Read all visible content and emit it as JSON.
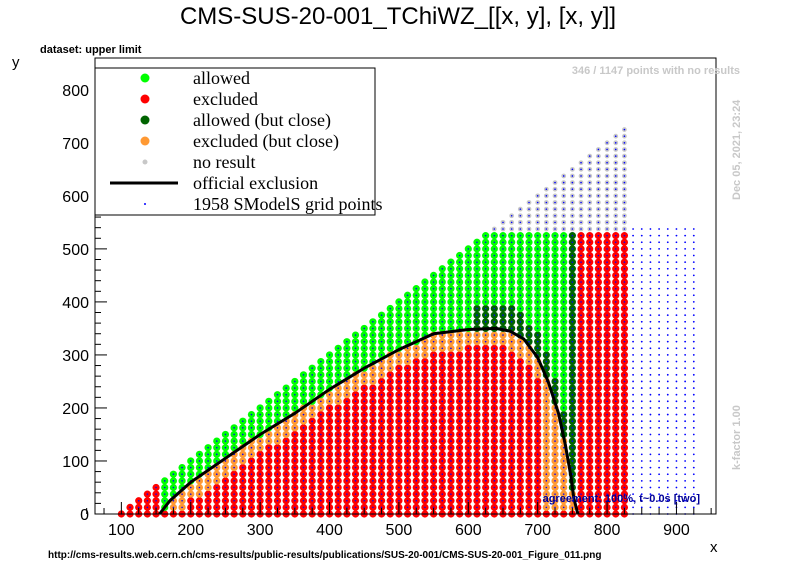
{
  "page": {
    "title": "CMS-SUS-20-001_TChiWZ_[[x, y], [x, y]]",
    "dataset_label": "dataset: upper limit",
    "no_result_note": "346 / 1147 points with no results",
    "date_note": "Dec 05, 2021, 23:24",
    "kfactor_note": "k-factor 1.00",
    "agreement_note": "agreement: 100%, t~0.0s [two]",
    "url": "http://cms-results.web.cern.ch/cms-results/public-results/publications/SUS-20-001/CMS-SUS-20-001_Figure_011.png"
  },
  "colors": {
    "allowed": "#00ff00",
    "excluded": "#ff0000",
    "allowed_close": "#006400",
    "excluded_close": "#ff9933",
    "no_result": "#c8c8c8",
    "official_exclusion": "#000000",
    "grid_points": "#0000ff",
    "agreement_text": "#000099"
  },
  "legend": [
    {
      "label": "allowed",
      "marker": "dot",
      "color_key": "allowed"
    },
    {
      "label": "excluded",
      "marker": "dot",
      "color_key": "excluded"
    },
    {
      "label": "allowed (but close)",
      "marker": "dot",
      "color_key": "allowed_close"
    },
    {
      "label": "excluded (but close)",
      "marker": "dot",
      "color_key": "excluded_close"
    },
    {
      "label": "no result",
      "marker": "small-dot",
      "color_key": "no_result"
    },
    {
      "label": "official exclusion",
      "marker": "line",
      "color_key": "official_exclusion"
    },
    {
      "label": "1958 SModelS grid points",
      "marker": "tiny-dot",
      "color_key": "grid_points"
    }
  ],
  "chart_data": {
    "type": "scatter",
    "xlabel": "x",
    "ylabel": "y",
    "xlim": [
      62,
      957
    ],
    "ylim": [
      0,
      860
    ],
    "x_ticks": [
      100,
      200,
      300,
      400,
      500,
      600,
      700,
      800,
      900
    ],
    "y_ticks": [
      0,
      100,
      200,
      300,
      400,
      500,
      600,
      700,
      800
    ],
    "grid": false,
    "legend_position": "top-left",
    "point_grid": {
      "x_start": 100,
      "x_end": 925,
      "x_step": 12.5,
      "y_start": 0,
      "y_step": 12.5,
      "diagonal_offset": 100,
      "results_x_max": 825,
      "results_y_max": 535,
      "grid_only_x_range": [
        825,
        925
      ],
      "grid_only_y_max": 545
    },
    "official_exclusion": {
      "x": [
        155,
        170,
        200,
        250,
        300,
        350,
        400,
        450,
        500,
        550,
        600,
        640,
        660,
        680,
        700,
        715,
        730,
        740,
        748,
        752,
        756,
        758
      ],
      "y": [
        0,
        25,
        60,
        105,
        150,
        190,
        235,
        275,
        310,
        340,
        348,
        350,
        345,
        330,
        295,
        250,
        190,
        130,
        70,
        30,
        10,
        0
      ]
    }
  }
}
